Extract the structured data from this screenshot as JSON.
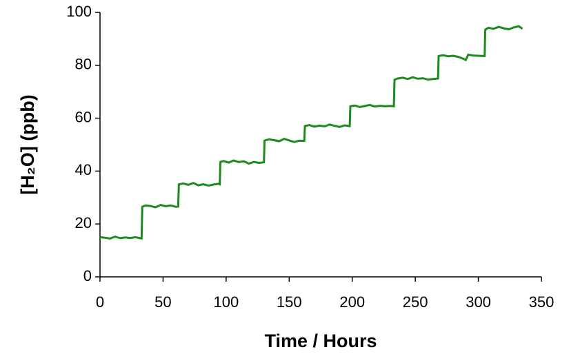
{
  "chart_data": {
    "type": "line",
    "x_label": "Time / Hours",
    "y_label": "[H₂O] (ppb)",
    "xlim": [
      0,
      350
    ],
    "xticks": [
      0,
      50,
      100,
      150,
      200,
      250,
      300,
      350
    ],
    "ylim": [
      0,
      100
    ],
    "yticks": [
      0,
      20,
      40,
      60,
      80,
      100
    ],
    "grid": false,
    "series": [
      {
        "color": "#1e8a1e",
        "x": [
          0,
          4,
          8,
          12,
          16,
          20,
          24,
          28,
          32,
          33,
          33.5,
          36,
          40,
          44,
          48,
          52,
          56,
          60,
          62,
          62.5,
          66,
          70,
          74,
          78,
          82,
          86,
          90,
          94,
          95,
          95.5,
          98,
          102,
          106,
          110,
          114,
          118,
          122,
          126,
          130,
          130.5,
          134,
          138,
          142,
          146,
          150,
          154,
          158,
          162,
          162.5,
          166,
          170,
          174,
          178,
          182,
          186,
          190,
          194,
          198,
          198.5,
          202,
          206,
          210,
          214,
          218,
          222,
          226,
          230,
          233,
          233.5,
          236,
          240,
          244,
          248,
          252,
          256,
          260,
          264,
          268,
          268.5,
          272,
          276,
          280,
          284,
          288,
          290,
          292,
          296,
          300,
          305,
          305.5,
          308,
          312,
          316,
          320,
          324,
          328,
          332,
          335
        ],
        "values": [
          15,
          14.8,
          14.5,
          15.2,
          14.6,
          14.9,
          14.7,
          15,
          14.6,
          14.5,
          26.5,
          27,
          26.8,
          26.3,
          27.2,
          26.7,
          27,
          26.5,
          26.6,
          35,
          35.3,
          34.8,
          35.5,
          34.6,
          35,
          34.5,
          34.9,
          35.2,
          35,
          43.5,
          43.8,
          43.2,
          44,
          43.4,
          43.7,
          42.8,
          43.5,
          43.1,
          43.3,
          51.5,
          52,
          51.7,
          51.3,
          52.2,
          51.6,
          51,
          51.5,
          51.4,
          57,
          57.4,
          56.8,
          57.2,
          56.9,
          57.6,
          57.1,
          56.7,
          57.3,
          57,
          64.5,
          64.8,
          64.2,
          64.6,
          65,
          64.4,
          64.7,
          64.5,
          64.6,
          64.5,
          74.5,
          75,
          75.3,
          74.8,
          75.5,
          74.9,
          75.1,
          74.6,
          74.8,
          75,
          83.5,
          83.8,
          83.4,
          83.6,
          83.2,
          82.5,
          82,
          84,
          83.7,
          83.6,
          83.5,
          93.5,
          94.2,
          93.8,
          94.5,
          94,
          93.6,
          94.3,
          94.8,
          93.8
        ]
      }
    ]
  }
}
